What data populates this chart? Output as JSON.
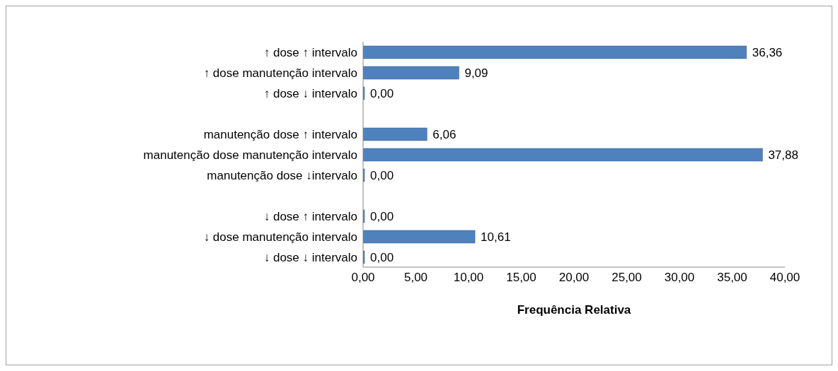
{
  "chart_data": {
    "type": "bar",
    "orientation": "horizontal",
    "xlabel": "Frequência Relativa",
    "categories": [
      "↑ dose ↑ intervalo",
      "↑ dose manutenção intervalo",
      "↑ dose ↓ intervalo",
      null,
      "manutenção dose ↑ intervalo",
      "manutenção dose manutenção intervalo",
      "manutenção dose ↓intervalo",
      null,
      "↓ dose ↑ intervalo",
      "↓ dose  manutenção intervalo",
      "↓ dose ↓ intervalo"
    ],
    "values": [
      36.36,
      9.09,
      0,
      null,
      6.06,
      37.88,
      0,
      null,
      0,
      10.61,
      0
    ],
    "value_labels": [
      "36,36",
      "9,09",
      "0,00",
      null,
      "6,06",
      "37,88",
      "0,00",
      null,
      "0,00",
      "10,61",
      "0,00"
    ],
    "color": "#4f81bd",
    "xlim": [
      0,
      40
    ],
    "xticks": [
      {
        "value": 0,
        "label": "0,00"
      },
      {
        "value": 5,
        "label": "5,00"
      },
      {
        "value": 10,
        "label": "10,00"
      },
      {
        "value": 15,
        "label": "15,00"
      },
      {
        "value": 20,
        "label": "20,00"
      },
      {
        "value": 25,
        "label": "25,00"
      },
      {
        "value": 30,
        "label": "30,00"
      },
      {
        "value": 35,
        "label": "35,00"
      },
      {
        "value": 40,
        "label": "40,00"
      }
    ],
    "grid": false,
    "legend": false
  }
}
